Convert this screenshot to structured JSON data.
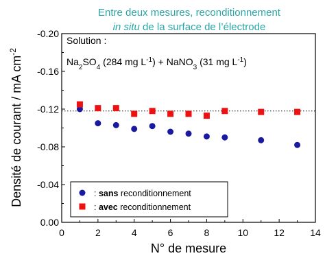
{
  "chart_data": {
    "type": "scatter",
    "header_line1": "Entre deux  mesures, reconditionnement",
    "header_line2_italic": "in situ",
    "header_line2_rest": " de la surface de l’électrode",
    "xlabel": "N° de mesure",
    "ylabel_main": "Densité de courant / mA cm",
    "ylabel_sup": "-2",
    "xlim": [
      0,
      14
    ],
    "ylim": [
      0,
      -0.2
    ],
    "x_ticks": [
      "0",
      "2",
      "4",
      "6",
      "8",
      "10",
      "12",
      "14"
    ],
    "y_ticks": [
      "0.00",
      "-0.04",
      "-0.08",
      "-0.12",
      "-0.16",
      "-0.20"
    ],
    "y_tick_values": [
      0,
      -0.04,
      -0.08,
      -0.12,
      -0.16,
      -0.2
    ],
    "x_tick_values": [
      0,
      2,
      4,
      6,
      8,
      10,
      12,
      14
    ],
    "annotation": {
      "line1": "Solution :",
      "formula": [
        {
          "t": "Na"
        },
        {
          "t": "2",
          "sub": true
        },
        {
          "t": "SO"
        },
        {
          "t": "4",
          "sub": true
        },
        {
          "t": " (284 mg L"
        },
        {
          "t": "-1",
          "sup": true
        },
        {
          "t": ") + NaNO"
        },
        {
          "t": "3",
          "sub": true
        },
        {
          "t": " (31 mg L"
        },
        {
          "t": "-1",
          "sup": true
        },
        {
          "t": ")"
        }
      ]
    },
    "reference_line": {
      "y": -0.118,
      "style": "dotted"
    },
    "series": [
      {
        "name_bold": "sans",
        "name_rest": " reconditionnement",
        "prefix": ": ",
        "marker": "circle",
        "color": "#1a1aa0",
        "x": [
          1,
          2,
          3,
          4,
          5,
          6,
          7,
          8,
          9,
          11,
          13
        ],
        "y": [
          -0.12,
          -0.105,
          -0.103,
          -0.099,
          -0.102,
          -0.096,
          -0.094,
          -0.091,
          -0.09,
          -0.087,
          -0.082
        ]
      },
      {
        "name_bold": "avec",
        "name_rest": " reconditionnement",
        "prefix": ": ",
        "marker": "square",
        "color": "#ee1111",
        "x": [
          1,
          2,
          3,
          4,
          5,
          6,
          7,
          8,
          9,
          11,
          13
        ],
        "y": [
          -0.125,
          -0.121,
          -0.121,
          -0.115,
          -0.118,
          -0.115,
          -0.115,
          -0.113,
          -0.118,
          -0.117,
          -0.117
        ]
      }
    ],
    "legend_position": "bottom-left",
    "grid": false
  }
}
